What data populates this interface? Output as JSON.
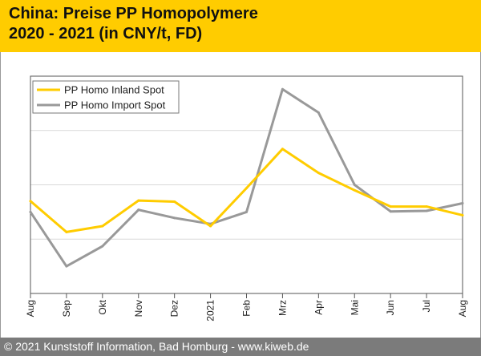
{
  "header": {
    "title_line1": "China: Preise PP Homopolymere",
    "title_line2": "2020 - 2021 (in CNY/t, FD)"
  },
  "footer": {
    "copyright": "© 2021 Kunststoff Information, Bad Homburg - www.kiweb.de"
  },
  "colors": {
    "header_bg": "#ffcc00",
    "footer_bg": "#7b7b7b",
    "series_inland": "#ffcc00",
    "series_import": "#999999",
    "grid": "#d9d9d9"
  },
  "chart_data": {
    "type": "line",
    "title": "China: Preise PP Homopolymere 2020 - 2021 (in CNY/t, FD)",
    "xlabel": "",
    "ylabel": "",
    "categories": [
      "Aug",
      "Sep",
      "Okt",
      "Nov",
      "Dez",
      "2021",
      "Feb",
      "Mrz",
      "Apr",
      "Mai",
      "Jun",
      "Jul",
      "Aug"
    ],
    "ylim": [
      0,
      4
    ],
    "gridlines": [
      1,
      2,
      3
    ],
    "y_ticks_labeled": false,
    "legend_position": "top-left",
    "series": [
      {
        "name": "PP Homo Inland Spot",
        "color": "#ffcc00",
        "values": [
          1.7,
          1.13,
          1.24,
          1.71,
          1.69,
          1.24,
          1.94,
          2.66,
          2.22,
          1.9,
          1.6,
          1.6,
          1.44
        ]
      },
      {
        "name": "PP Homo Import Spot",
        "color": "#999999",
        "values": [
          1.5,
          0.5,
          0.87,
          1.54,
          1.39,
          1.28,
          1.5,
          3.76,
          3.33,
          2.0,
          1.51,
          1.52,
          1.66
        ]
      }
    ]
  }
}
